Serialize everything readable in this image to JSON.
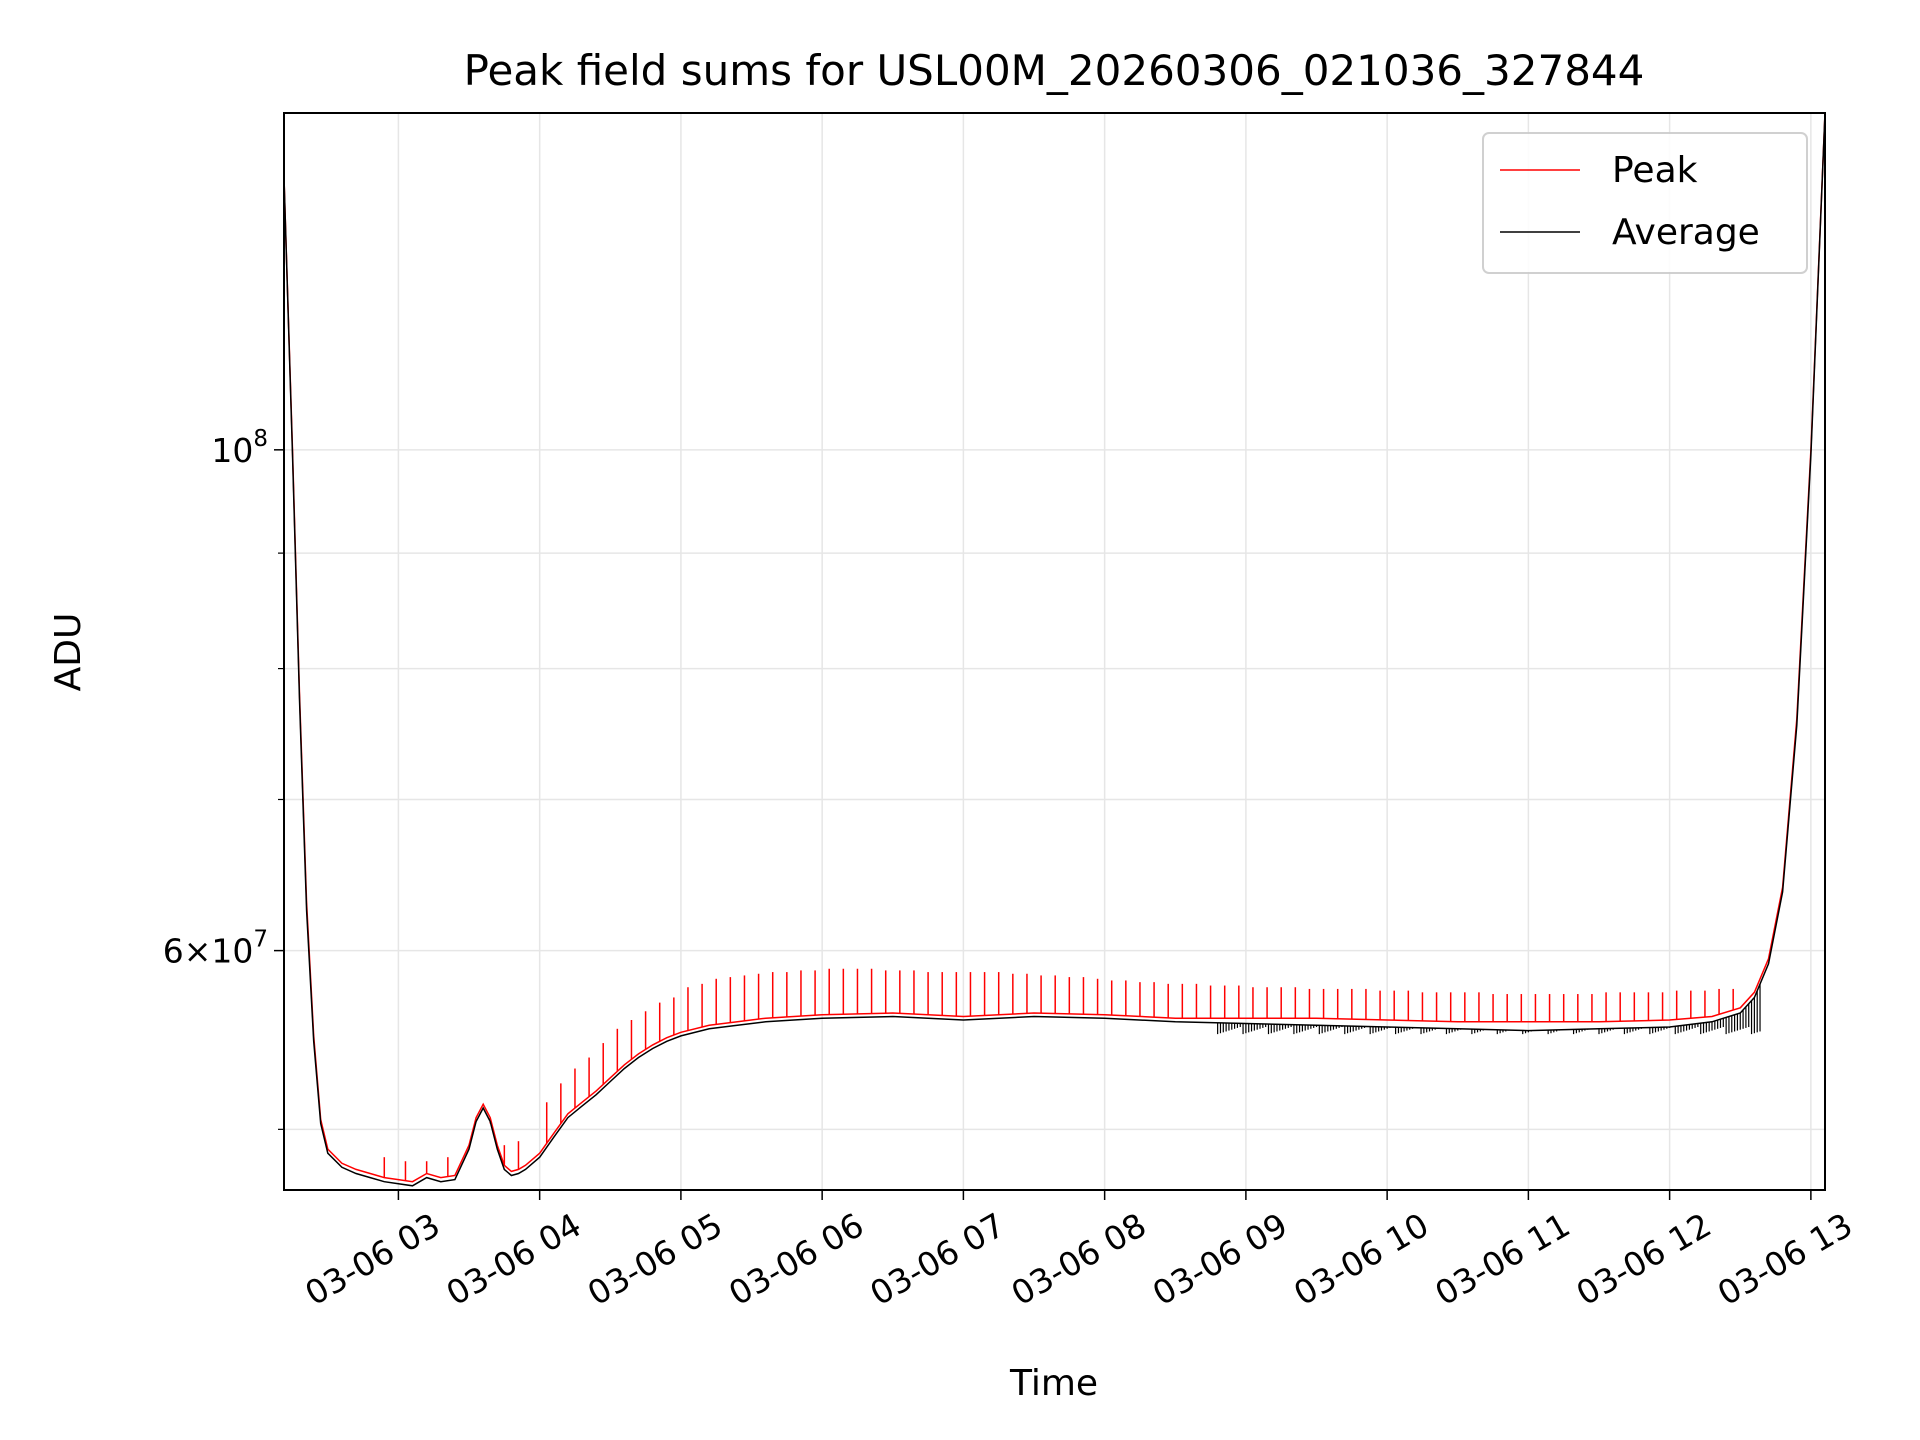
{
  "chart_data": {
    "type": "line",
    "title": "Peak field sums for USL00M_20260306_021036_327844",
    "xlabel": "Time",
    "ylabel": "ADU",
    "yscale": "log",
    "grid": true,
    "legend_position": "top-right",
    "xlim": [
      2.19,
      13.1
    ],
    "ylim": [
      47000000,
      141000000
    ],
    "x_ticks": [
      {
        "value": 3,
        "label": "03-06 03"
      },
      {
        "value": 4,
        "label": "03-06 04"
      },
      {
        "value": 5,
        "label": "03-06 05"
      },
      {
        "value": 6,
        "label": "03-06 06"
      },
      {
        "value": 7,
        "label": "03-06 07"
      },
      {
        "value": 8,
        "label": "03-06 08"
      },
      {
        "value": 9,
        "label": "03-06 09"
      },
      {
        "value": 10,
        "label": "03-06 10"
      },
      {
        "value": 11,
        "label": "03-06 11"
      },
      {
        "value": 12,
        "label": "03-06 12"
      },
      {
        "value": 13,
        "label": "03-06 13"
      }
    ],
    "y_major_ticks": [
      {
        "value": 100000000,
        "base": "10",
        "exp": "8"
      },
      {
        "value": 60000000,
        "base": "6×10",
        "exp": "7"
      }
    ],
    "y_minor_ticks": [
      50000000,
      70000000,
      80000000,
      90000000
    ],
    "series": [
      {
        "name": "Peak",
        "color": "#ff0000",
        "x": [
          2.19,
          2.25,
          2.3,
          2.35,
          2.4,
          2.45,
          2.5,
          2.6,
          2.7,
          2.8,
          2.9,
          3.0,
          3.1,
          3.2,
          3.3,
          3.4,
          3.5,
          3.55,
          3.6,
          3.65,
          3.7,
          3.75,
          3.8,
          3.85,
          3.9,
          4.0,
          4.1,
          4.2,
          4.3,
          4.4,
          4.5,
          4.6,
          4.7,
          4.8,
          4.9,
          5.0,
          5.2,
          5.4,
          5.6,
          5.8,
          6.0,
          6.5,
          7.0,
          7.5,
          8.0,
          8.5,
          9.0,
          9.5,
          10.0,
          10.5,
          11.0,
          11.5,
          12.0,
          12.3,
          12.5,
          12.6,
          12.7,
          12.8,
          12.9,
          13.0,
          13.1
        ],
        "values": [
          132000000,
          100000000,
          78000000,
          63000000,
          55000000,
          50500000,
          49000000,
          48300000,
          48000000,
          47800000,
          47600000,
          47500000,
          47400000,
          47800000,
          47600000,
          47700000,
          49200000,
          50600000,
          51300000,
          50600000,
          49200000,
          48200000,
          47900000,
          48000000,
          48200000,
          48800000,
          49800000,
          50800000,
          51400000,
          52000000,
          52700000,
          53400000,
          54000000,
          54500000,
          54900000,
          55200000,
          55600000,
          55800000,
          56000000,
          56100000,
          56200000,
          56300000,
          56100000,
          56300000,
          56200000,
          56000000,
          56000000,
          56000000,
          55900000,
          55800000,
          55800000,
          55800000,
          55900000,
          56100000,
          56600000,
          57500000,
          59500000,
          64000000,
          76000000,
          100000000,
          141000000
        ],
        "spikes_x": [
          2.9,
          3.05,
          3.2,
          3.35,
          3.65,
          3.75,
          3.85,
          4.05,
          4.15,
          4.25,
          4.35,
          4.45,
          4.55,
          4.65,
          4.75,
          4.85,
          4.95,
          5.05,
          5.15,
          5.25,
          5.35,
          5.45,
          5.55,
          5.65,
          5.75,
          5.85,
          5.95,
          6.05,
          6.15,
          6.25,
          6.35,
          6.45,
          6.55,
          6.65,
          6.75,
          6.85,
          6.95,
          7.05,
          7.15,
          7.25,
          7.35,
          7.45,
          7.55,
          7.65,
          7.75,
          7.85,
          7.95,
          8.05,
          8.15,
          8.25,
          8.35,
          8.45,
          8.55,
          8.65,
          8.75,
          8.85,
          8.95,
          9.05,
          9.15,
          9.25,
          9.35,
          9.45,
          9.55,
          9.65,
          9.75,
          9.85,
          9.95,
          10.05,
          10.15,
          10.25,
          10.35,
          10.45,
          10.55,
          10.65,
          10.75,
          10.85,
          10.95,
          11.05,
          11.15,
          11.25,
          11.35,
          11.45,
          11.55,
          11.65,
          11.75,
          11.85,
          11.95,
          12.05,
          12.15,
          12.25,
          12.35,
          12.45
        ],
        "spikes_top": [
          48600000,
          48400000,
          48400000,
          48600000,
          50300000,
          49200000,
          49400000,
          51400000,
          52400000,
          53200000,
          53800000,
          54600000,
          55400000,
          55900000,
          56400000,
          56900000,
          57200000,
          57800000,
          58000000,
          58300000,
          58400000,
          58500000,
          58600000,
          58700000,
          58700000,
          58800000,
          58800000,
          58900000,
          58900000,
          58900000,
          58900000,
          58800000,
          58800000,
          58800000,
          58700000,
          58700000,
          58700000,
          58700000,
          58700000,
          58700000,
          58600000,
          58600000,
          58500000,
          58500000,
          58400000,
          58400000,
          58300000,
          58200000,
          58200000,
          58100000,
          58100000,
          58000000,
          58000000,
          58000000,
          57900000,
          57900000,
          57900000,
          57800000,
          57800000,
          57800000,
          57800000,
          57700000,
          57700000,
          57700000,
          57700000,
          57700000,
          57600000,
          57600000,
          57600000,
          57500000,
          57500000,
          57500000,
          57500000,
          57500000,
          57400000,
          57400000,
          57400000,
          57400000,
          57400000,
          57400000,
          57400000,
          57400000,
          57500000,
          57500000,
          57500000,
          57500000,
          57500000,
          57600000,
          57600000,
          57600000,
          57700000,
          57700000
        ]
      },
      {
        "name": "Average",
        "color": "#000000",
        "x": [
          2.19,
          2.25,
          2.3,
          2.35,
          2.4,
          2.45,
          2.5,
          2.6,
          2.7,
          2.8,
          2.9,
          3.0,
          3.1,
          3.2,
          3.3,
          3.4,
          3.5,
          3.55,
          3.6,
          3.65,
          3.7,
          3.75,
          3.8,
          3.85,
          3.9,
          4.0,
          4.1,
          4.2,
          4.3,
          4.4,
          4.5,
          4.6,
          4.7,
          4.8,
          4.9,
          5.0,
          5.2,
          5.4,
          5.6,
          5.8,
          6.0,
          6.5,
          7.0,
          7.5,
          8.0,
          8.5,
          9.0,
          9.5,
          10.0,
          10.5,
          11.0,
          11.5,
          12.0,
          12.3,
          12.5,
          12.6,
          12.7,
          12.8,
          12.9,
          13.0,
          13.1
        ],
        "values": [
          132000000,
          99500000,
          77500000,
          62500000,
          54700000,
          50300000,
          48800000,
          48100000,
          47800000,
          47600000,
          47400000,
          47300000,
          47200000,
          47600000,
          47400000,
          47500000,
          49000000,
          50400000,
          51100000,
          50400000,
          49000000,
          48000000,
          47700000,
          47800000,
          48000000,
          48600000,
          49600000,
          50600000,
          51200000,
          51800000,
          52500000,
          53200000,
          53800000,
          54300000,
          54700000,
          55000000,
          55400000,
          55600000,
          55800000,
          55900000,
          56000000,
          56100000,
          55900000,
          56100000,
          56000000,
          55800000,
          55700000,
          55600000,
          55500000,
          55400000,
          55300000,
          55400000,
          55500000,
          55800000,
          56300000,
          57200000,
          59200000,
          63700000,
          75500000,
          99500000,
          141000000
        ],
        "noise_start": 8.8,
        "noise_end": 12.65,
        "noise_low": 55100000
      }
    ]
  }
}
